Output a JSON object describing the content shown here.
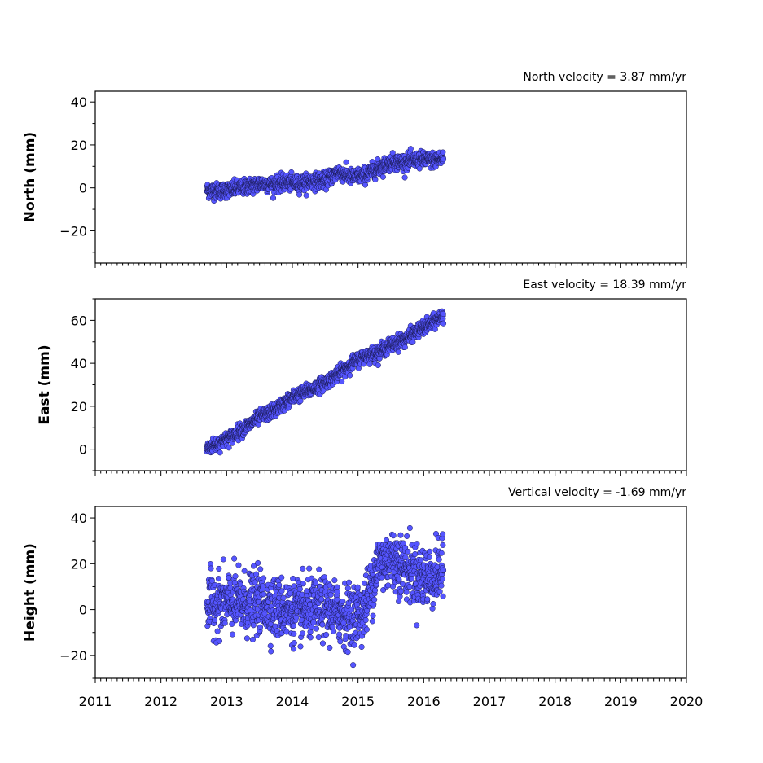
{
  "chart_data": [
    {
      "type": "scatter",
      "title": "North velocity = 3.87 mm/yr",
      "ylabel": "North (mm)",
      "xlim": [
        2011,
        2020
      ],
      "ylim": [
        -35,
        45
      ],
      "yticks": [
        "−20",
        "0",
        "20",
        "40"
      ],
      "ytick_values": [
        -20,
        0,
        20,
        40
      ],
      "marker_color": "#5555ff",
      "marker_edge": "#1a1a55",
      "series": [
        {
          "x": [
            2012.7,
            2012.9,
            2013.1,
            2013.3,
            2013.5,
            2013.7,
            2013.9,
            2014.1,
            2014.3,
            2014.5,
            2014.7,
            2014.9,
            2015.1,
            2015.3,
            2015.5,
            2015.7,
            2015.9,
            2016.1,
            2016.3
          ],
          "y": [
            -1.0,
            -1.5,
            -0.5,
            0.5,
            2.0,
            1.5,
            2.5,
            2.0,
            3.0,
            3.5,
            7.5,
            5.0,
            6.0,
            9.0,
            12.0,
            12.0,
            13.0,
            13.0,
            13.5
          ]
        }
      ]
    },
    {
      "type": "scatter",
      "title": "East velocity = 18.39 mm/yr",
      "ylabel": "East (mm)",
      "xlim": [
        2011,
        2020
      ],
      "ylim": [
        -10,
        70
      ],
      "yticks": [
        "0",
        "20",
        "40",
        "60"
      ],
      "ytick_values": [
        0,
        20,
        40,
        60
      ],
      "marker_color": "#5555ff",
      "marker_edge": "#1a1a55",
      "series": [
        {
          "x": [
            2012.7,
            2012.9,
            2013.1,
            2013.3,
            2013.5,
            2013.7,
            2013.9,
            2014.1,
            2014.3,
            2014.5,
            2014.7,
            2014.9,
            2015.1,
            2015.3,
            2015.5,
            2015.7,
            2015.9,
            2016.1,
            2016.3
          ],
          "y": [
            0.5,
            3.0,
            6.5,
            10.5,
            15.0,
            17.5,
            22.0,
            25.5,
            28.0,
            31.0,
            35.0,
            40.0,
            43.5,
            45.0,
            48.5,
            51.0,
            55.0,
            58.0,
            62.5
          ]
        }
      ]
    },
    {
      "type": "scatter",
      "title": "Vertical velocity = -1.69 mm/yr",
      "ylabel": "Height (mm)",
      "xlim": [
        2011,
        2020
      ],
      "ylim": [
        -30,
        45
      ],
      "yticks": [
        "−20",
        "0",
        "20",
        "40"
      ],
      "ytick_values": [
        -20,
        0,
        20,
        40
      ],
      "xticks": [
        "2011",
        "2012",
        "2013",
        "2014",
        "2015",
        "2016",
        "2017",
        "2018",
        "2019",
        "2020"
      ],
      "xtick_values": [
        2011,
        2012,
        2013,
        2014,
        2015,
        2016,
        2017,
        2018,
        2019,
        2020
      ],
      "marker_color": "#5555ff",
      "marker_edge": "#1a1a55",
      "series": [
        {
          "x": [
            2012.7,
            2012.9,
            2013.1,
            2013.3,
            2013.5,
            2013.7,
            2013.9,
            2014.1,
            2014.3,
            2014.5,
            2014.7,
            2014.9,
            2015.1,
            2015.3,
            2015.5,
            2015.7,
            2015.9,
            2016.1,
            2016.3
          ],
          "y": [
            2.0,
            3.0,
            3.0,
            2.0,
            3.5,
            1.0,
            0.0,
            -1.0,
            0.0,
            1.0,
            -1.5,
            -3.0,
            0.0,
            20.0,
            22.0,
            19.0,
            15.0,
            14.0,
            17.0
          ]
        }
      ]
    }
  ]
}
